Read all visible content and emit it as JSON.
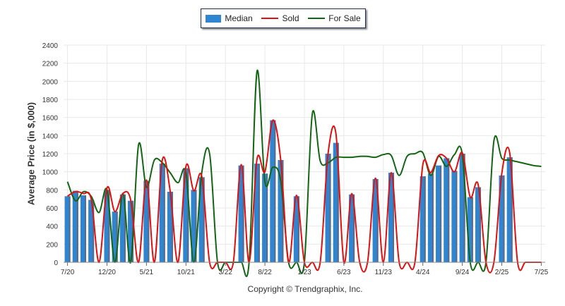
{
  "legend": {
    "median": "Median",
    "sold": "Sold",
    "for_sale": "For Sale"
  },
  "copyright": "Copyright © Trendgraphix, Inc.",
  "colors": {
    "median": "#2f85d0",
    "median_edge": "#5a6a8a",
    "sold": "#e01010",
    "for_sale": "#116611",
    "grid": "#e8e8e8"
  },
  "chart_data": {
    "type": "bar",
    "ylabel": "Average Price (in $,000)",
    "ylim": [
      0,
      2400
    ],
    "yticks": [
      0,
      200,
      400,
      600,
      800,
      1000,
      1200,
      1400,
      1600,
      1800,
      2000,
      2200,
      2400
    ],
    "grid": true,
    "legend_position": "top-center",
    "x_tick_labels": [
      "7/20",
      "12/20",
      "5/21",
      "10/21",
      "3/22",
      "8/22",
      "1/23",
      "6/23",
      "11/23",
      "4/24",
      "9/24",
      "2/25",
      "7/25"
    ],
    "months": [
      "7/20",
      "8/20",
      "9/20",
      "10/20",
      "11/20",
      "12/20",
      "1/21",
      "2/21",
      "3/21",
      "4/21",
      "5/21",
      "6/21",
      "7/21",
      "8/21",
      "9/21",
      "10/21",
      "11/21",
      "12/21",
      "1/22",
      "2/22",
      "3/22",
      "4/22",
      "5/22",
      "6/22",
      "7/22",
      "8/22",
      "9/22",
      "10/22",
      "11/22",
      "12/22",
      "1/23",
      "2/23",
      "3/23",
      "4/23",
      "5/23",
      "6/23",
      "7/23",
      "8/23",
      "9/23",
      "10/23",
      "11/23",
      "12/23",
      "1/24",
      "2/24",
      "3/24",
      "4/24",
      "5/24",
      "6/24",
      "7/24",
      "8/24",
      "9/24",
      "10/24",
      "11/24",
      "12/24",
      "1/25",
      "2/25",
      "3/25",
      "4/25",
      "5/25",
      "6/25",
      "7/25"
    ],
    "series": [
      {
        "name": "Median",
        "type": "bar",
        "values": [
          730,
          790,
          740,
          690,
          0,
          800,
          560,
          750,
          680,
          0,
          900,
          0,
          1090,
          780,
          0,
          1040,
          800,
          940,
          0,
          0,
          0,
          0,
          1070,
          0,
          1090,
          980,
          1570,
          1130,
          0,
          730,
          0,
          0,
          0,
          1200,
          1320,
          0,
          750,
          0,
          0,
          920,
          0,
          990,
          0,
          0,
          0,
          950,
          980,
          1070,
          1150,
          1010,
          1200,
          720,
          830,
          0,
          0,
          960,
          1160,
          0,
          0,
          0,
          0
        ]
      },
      {
        "name": "Sold",
        "type": "line",
        "values": [
          730,
          780,
          760,
          700,
          0,
          820,
          560,
          760,
          690,
          0,
          910,
          0,
          1130,
          790,
          0,
          1060,
          790,
          950,
          0,
          0,
          0,
          0,
          1080,
          0,
          1140,
          1000,
          1570,
          1130,
          0,
          740,
          0,
          0,
          0,
          1200,
          1420,
          0,
          760,
          0,
          0,
          930,
          0,
          990,
          0,
          0,
          0,
          1080,
          990,
          1180,
          1150,
          1000,
          1210,
          720,
          860,
          0,
          0,
          980,
          1210,
          0,
          0,
          0,
          0
        ]
      },
      {
        "name": "For Sale",
        "type": "line",
        "values": [
          890,
          680,
          780,
          730,
          550,
          800,
          0,
          760,
          0,
          1300,
          830,
          1130,
          1100,
          990,
          880,
          990,
          0,
          990,
          1200,
          0,
          0,
          0,
          0,
          0,
          2110,
          890,
          1050,
          900,
          0,
          0,
          0,
          1640,
          1120,
          1100,
          1160,
          1160,
          1160,
          1170,
          1170,
          1160,
          1190,
          1180,
          960,
          1170,
          1200,
          1210,
          960,
          1170,
          1060,
          1190,
          1190,
          0,
          0,
          0,
          1340,
          1150,
          1130,
          1110,
          1090,
          1070,
          1060
        ]
      }
    ]
  }
}
